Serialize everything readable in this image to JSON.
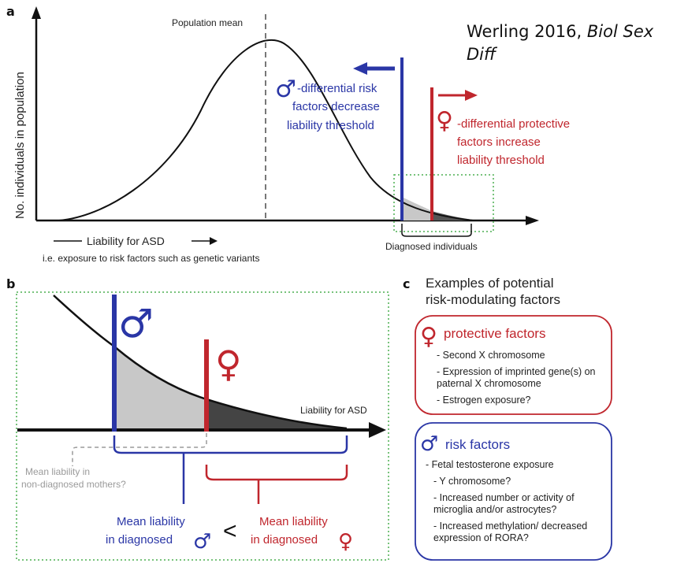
{
  "citation": {
    "author_year": "Werling 2016,",
    "journal": "Biol Sex Diff"
  },
  "panel_a": {
    "letter": "a",
    "y_axis_label": "No. individuals in population",
    "population_mean_label": "Population mean",
    "x_axis_label": "Liability for ASD",
    "x_axis_sublabel": "i.e. exposure to risk factors such as genetic variants",
    "diagnosed_label": "Diagnosed individuals",
    "male_text": [
      "-differential risk",
      "factors decrease",
      "liability threshold"
    ],
    "female_text": [
      "-differential protective",
      "factors increase",
      "liability threshold"
    ]
  },
  "panel_b": {
    "letter": "b",
    "x_axis_label": "Liability for ASD",
    "mothers_label": [
      "Mean liability in",
      "non-diagnosed mothers?"
    ],
    "male_mean_label": [
      "Mean liability",
      "in diagnosed"
    ],
    "female_mean_label": [
      "Mean liability",
      "in diagnosed"
    ],
    "less_than": "<"
  },
  "panel_c": {
    "letter": "c",
    "title": [
      "Examples of potential",
      "risk-modulating factors"
    ],
    "protective": {
      "title": "protective factors",
      "items": [
        "- Second X chromosome",
        "- Expression of imprinted gene(s) on paternal X chromosome",
        "- Estrogen exposure?"
      ]
    },
    "risk": {
      "title": "risk factors",
      "items": [
        "- Fetal testosterone exposure",
        "- Y chromosome?",
        "- Increased number or activity of microglia and/or astrocytes?",
        "- Increased methylation/ decreased expression of RORA?"
      ]
    }
  },
  "symbols": {
    "male": "♂",
    "female": "♀"
  },
  "colors": {
    "male": "#2a36a6",
    "female": "#c0262d",
    "dotted_box": "#4caf50",
    "mothers": "#9a9a9a"
  }
}
